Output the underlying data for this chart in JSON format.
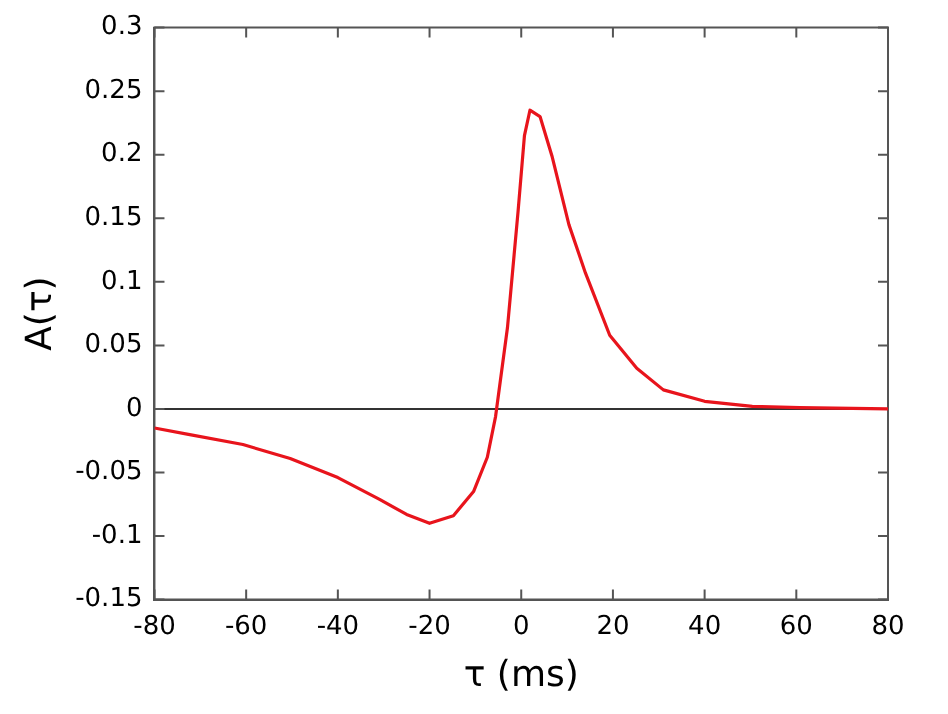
{
  "chart_data": {
    "type": "line",
    "xlabel": "τ (ms)",
    "ylabel": "A(τ)",
    "x": [
      -80,
      -72.6,
      -60.7,
      -50.4,
      -40,
      -31,
      -25,
      -20,
      -14.8,
      -10.4,
      -7.4,
      -5.6,
      -3,
      -0.7,
      0.7,
      1.9,
      4.1,
      6.7,
      10.4,
      14,
      19.3,
      25.2,
      31,
      40,
      50.4,
      60.7,
      80
    ],
    "series": [
      {
        "color": "#e8141c",
        "values": [
          -0.015,
          -0.02,
          -0.028,
          -0.039,
          -0.054,
          -0.071,
          -0.083,
          -0.09,
          -0.084,
          -0.065,
          -0.038,
          -0.006,
          0.064,
          0.155,
          0.215,
          0.235,
          0.23,
          0.199,
          0.145,
          0.107,
          0.058,
          0.032,
          0.015,
          0.006,
          0.002,
          0.001,
          0
        ]
      }
    ],
    "xlim": [
      -80,
      80
    ],
    "xticks": [
      -80,
      -60,
      -40,
      -20,
      0,
      20,
      40,
      60,
      80
    ],
    "ylim": [
      -0.15,
      0.3
    ],
    "yticks": [
      -0.15,
      -0.1,
      -0.05,
      0,
      0.05,
      0.1,
      0.15,
      0.2,
      0.25,
      0.3
    ],
    "ref_lines": [
      {
        "axis": "y",
        "value": 0,
        "color": "#333333"
      }
    ],
    "grid": false,
    "legend": false,
    "marker": "none",
    "line_style": "solid"
  }
}
